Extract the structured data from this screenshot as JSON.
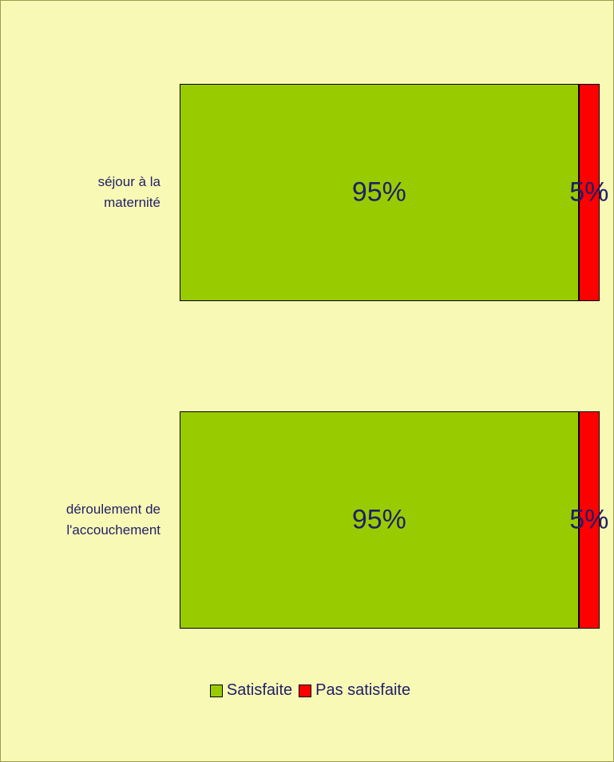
{
  "chart_data": {
    "type": "stacked-bar-horizontal",
    "categories": [
      "séjour à la maternité",
      "déroulement de l'accouchement"
    ],
    "series": [
      {
        "name": "Satisfaite",
        "color": "#99cc00",
        "values": [
          95,
          95
        ],
        "value_labels": [
          "95%",
          "95%"
        ]
      },
      {
        "name": "Pas satisfaite",
        "color": "#ff0000",
        "values": [
          5,
          5
        ],
        "value_labels": [
          "5%",
          "5%"
        ]
      }
    ],
    "legend": "bottom"
  }
}
